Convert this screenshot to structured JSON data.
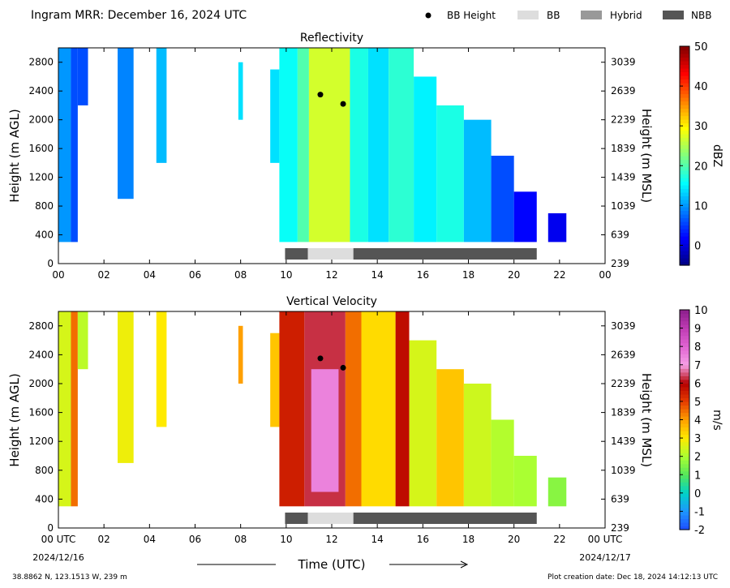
{
  "header": {
    "title": "Ingram MRR:  December 16, 2024 UTC",
    "legend": [
      {
        "label": "BB Height",
        "symbol": "dot",
        "color": "#000000"
      },
      {
        "label": "BB",
        "symbol": "box",
        "color": "#dddddd"
      },
      {
        "label": "Hybrid",
        "symbol": "box",
        "color": "#999999"
      },
      {
        "label": "NBB",
        "symbol": "box",
        "color": "#555555"
      }
    ]
  },
  "x_axis": {
    "ticks": [
      0,
      2,
      4,
      6,
      8,
      10,
      12,
      14,
      16,
      18,
      20,
      22,
      24
    ],
    "top_labels": [
      "00",
      "02",
      "04",
      "06",
      "08",
      "10",
      "12",
      "14",
      "16",
      "18",
      "20",
      "22",
      "00"
    ],
    "bottom_labels": [
      "00 UTC",
      "02",
      "04",
      "06",
      "08",
      "10",
      "12",
      "14",
      "16",
      "18",
      "20",
      "22",
      "00 UTC"
    ],
    "start_date": "2024/12/16",
    "end_date": "2024/12/17",
    "label": "Time (UTC)"
  },
  "footer": {
    "location": "38.8862 N, 123.1513 W, 239 m",
    "creation": "Plot creation date: Dec 18, 2024 14:12:13 UTC"
  },
  "chart_data": [
    {
      "type": "heatmap",
      "title": "Reflectivity",
      "ylabel": "Height (m AGL)",
      "ylabel_right": "Height (m MSL)",
      "xlim": [
        0,
        24
      ],
      "ylim": [
        0,
        3000
      ],
      "yticks": [
        0,
        400,
        800,
        1200,
        1600,
        2000,
        2400,
        2800
      ],
      "yticks_right": [
        "239",
        "639",
        "1039",
        "1439",
        "1839",
        "2239",
        "2639",
        "3039"
      ],
      "colorbar": {
        "label": "dBZ",
        "min": -5,
        "max": 50,
        "ticks": [
          0,
          10,
          20,
          30,
          40,
          50
        ],
        "colormap": "jet"
      },
      "bb_height_points": [
        {
          "x": 11.5,
          "y": 2350
        },
        {
          "x": 12.5,
          "y": 2220
        }
      ],
      "classification_bar": [
        {
          "start": 9.95,
          "end": 10.95,
          "class": "NBB"
        },
        {
          "start": 10.95,
          "end": 12.95,
          "class": "BB"
        },
        {
          "start": 12.95,
          "end": 21.0,
          "class": "NBB"
        }
      ],
      "precip_blocks": [
        {
          "x0": 0.0,
          "x1": 0.55,
          "top": 3000,
          "bottom": 300,
          "value": 10
        },
        {
          "x0": 0.55,
          "x1": 0.85,
          "top": 3000,
          "bottom": 300,
          "value": 6
        },
        {
          "x0": 0.85,
          "x1": 1.3,
          "top": 3000,
          "bottom": 2200,
          "value": 6
        },
        {
          "x0": 2.6,
          "x1": 3.3,
          "top": 3000,
          "bottom": 900,
          "value": 9
        },
        {
          "x0": 4.3,
          "x1": 4.75,
          "top": 3000,
          "bottom": 1400,
          "value": 12
        },
        {
          "x0": 7.9,
          "x1": 8.1,
          "top": 2800,
          "bottom": 2000,
          "value": 14
        },
        {
          "x0": 9.3,
          "x1": 9.7,
          "top": 2700,
          "bottom": 1400,
          "value": 14
        },
        {
          "x0": 9.7,
          "x1": 10.5,
          "top": 3000,
          "bottom": 300,
          "value": 16
        },
        {
          "x0": 10.5,
          "x1": 11.0,
          "top": 3000,
          "bottom": 300,
          "value": 20
        },
        {
          "x0": 11.0,
          "x1": 12.8,
          "top": 3000,
          "bottom": 300,
          "value": 27
        },
        {
          "x0": 12.8,
          "x1": 13.6,
          "top": 3000,
          "bottom": 300,
          "value": 17
        },
        {
          "x0": 13.6,
          "x1": 14.5,
          "top": 3000,
          "bottom": 300,
          "value": 14
        },
        {
          "x0": 14.5,
          "x1": 15.6,
          "top": 3000,
          "bottom": 300,
          "value": 18
        },
        {
          "x0": 15.6,
          "x1": 16.6,
          "top": 2600,
          "bottom": 300,
          "value": 15
        },
        {
          "x0": 16.6,
          "x1": 17.8,
          "top": 2200,
          "bottom": 300,
          "value": 17
        },
        {
          "x0": 17.8,
          "x1": 19.0,
          "top": 2000,
          "bottom": 300,
          "value": 12
        },
        {
          "x0": 19.0,
          "x1": 20.0,
          "top": 1500,
          "bottom": 300,
          "value": 6
        },
        {
          "x0": 20.0,
          "x1": 21.0,
          "top": 1000,
          "bottom": 300,
          "value": 2
        },
        {
          "x0": 21.5,
          "x1": 22.3,
          "top": 700,
          "bottom": 300,
          "value": 1
        }
      ]
    },
    {
      "type": "heatmap",
      "title": "Vertical Velocity",
      "ylabel": "Height (m AGL)",
      "ylabel_right": "Height (m MSL)",
      "xlim": [
        0,
        24
      ],
      "ylim": [
        0,
        3000
      ],
      "yticks": [
        0,
        400,
        800,
        1200,
        1600,
        2000,
        2400,
        2800
      ],
      "yticks_right": [
        "239",
        "639",
        "1039",
        "1439",
        "1839",
        "2239",
        "2639",
        "3039"
      ],
      "colorbar": {
        "label": "m/s",
        "min": -2,
        "max": 10,
        "ticks": [
          -2,
          -1,
          0,
          1,
          2,
          3,
          4,
          5,
          6,
          7,
          8,
          9,
          10
        ],
        "colormap": "custom"
      },
      "bb_height_points": [
        {
          "x": 11.5,
          "y": 2350
        },
        {
          "x": 12.5,
          "y": 2220
        }
      ],
      "classification_bar": [
        {
          "start": 9.95,
          "end": 10.95,
          "class": "NBB"
        },
        {
          "start": 10.95,
          "end": 12.95,
          "class": "BB"
        },
        {
          "start": 12.95,
          "end": 21.0,
          "class": "NBB"
        }
      ],
      "precip_blocks": [
        {
          "x0": 0.0,
          "x1": 0.55,
          "top": 3000,
          "bottom": 300,
          "value": 2.5
        },
        {
          "x0": 0.55,
          "x1": 0.85,
          "top": 3000,
          "bottom": 300,
          "value": 4.5
        },
        {
          "x0": 0.85,
          "x1": 1.3,
          "top": 3000,
          "bottom": 2200,
          "value": 2.2
        },
        {
          "x0": 2.6,
          "x1": 3.3,
          "top": 3000,
          "bottom": 900,
          "value": 2.8
        },
        {
          "x0": 4.3,
          "x1": 4.75,
          "top": 3000,
          "bottom": 1400,
          "value": 3.0
        },
        {
          "x0": 7.9,
          "x1": 8.1,
          "top": 2800,
          "bottom": 2000,
          "value": 4.0
        },
        {
          "x0": 9.3,
          "x1": 9.7,
          "top": 2700,
          "bottom": 1400,
          "value": 3.5
        },
        {
          "x0": 9.7,
          "x1": 10.8,
          "top": 3000,
          "bottom": 300,
          "value": 5.5
        },
        {
          "x0": 10.8,
          "x1": 12.6,
          "top": 3000,
          "bottom": 300,
          "value": 6.3
        },
        {
          "x0": 11.1,
          "x1": 12.3,
          "top": 2200,
          "bottom": 500,
          "value": 7.5
        },
        {
          "x0": 12.6,
          "x1": 13.3,
          "top": 3000,
          "bottom": 300,
          "value": 4.5
        },
        {
          "x0": 13.3,
          "x1": 14.8,
          "top": 3000,
          "bottom": 300,
          "value": 3.2
        },
        {
          "x0": 14.8,
          "x1": 15.4,
          "top": 3000,
          "bottom": 300,
          "value": 5.8
        },
        {
          "x0": 15.4,
          "x1": 16.6,
          "top": 2600,
          "bottom": 300,
          "value": 2.5
        },
        {
          "x0": 16.6,
          "x1": 17.8,
          "top": 2200,
          "bottom": 300,
          "value": 3.5
        },
        {
          "x0": 17.8,
          "x1": 19.0,
          "top": 2000,
          "bottom": 300,
          "value": 2.4
        },
        {
          "x0": 19.0,
          "x1": 20.0,
          "top": 1500,
          "bottom": 300,
          "value": 2.1
        },
        {
          "x0": 20.0,
          "x1": 21.0,
          "top": 1000,
          "bottom": 300,
          "value": 2.0
        },
        {
          "x0": 21.5,
          "x1": 22.3,
          "top": 700,
          "bottom": 300,
          "value": 1.6
        }
      ]
    }
  ]
}
